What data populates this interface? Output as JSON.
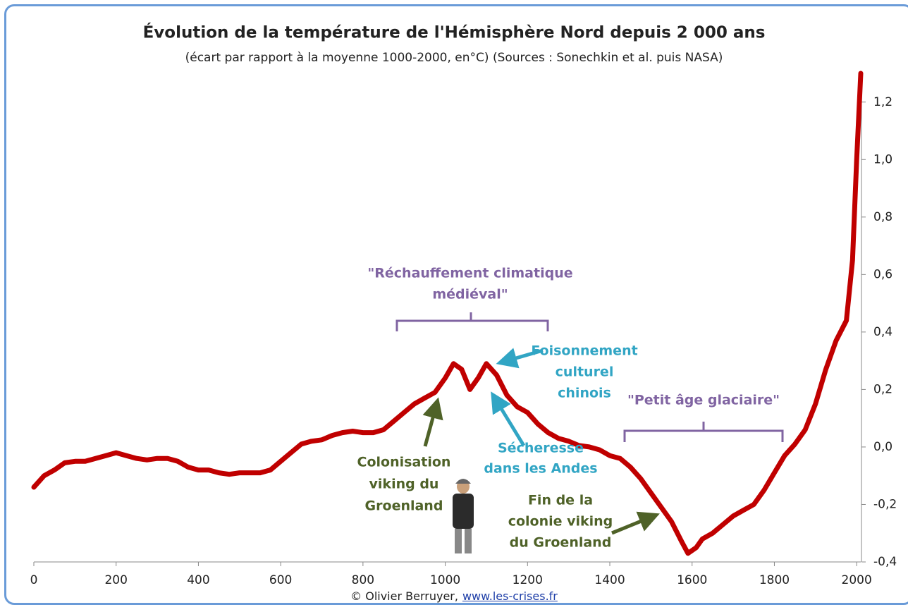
{
  "chart_data": {
    "type": "line",
    "title": "Évolution de la température de l'Hémisphère Nord depuis 2 000 ans",
    "subtitle": "(écart par rapport à la moyenne 1000-2000,  en°C) (Sources : Sonechkin et al. puis NASA)",
    "x": [
      0,
      25,
      50,
      75,
      100,
      125,
      150,
      175,
      200,
      225,
      250,
      275,
      300,
      325,
      350,
      375,
      400,
      425,
      450,
      475,
      500,
      525,
      550,
      575,
      600,
      625,
      650,
      675,
      700,
      725,
      750,
      775,
      800,
      825,
      850,
      875,
      900,
      925,
      950,
      975,
      1000,
      1020,
      1040,
      1060,
      1080,
      1100,
      1125,
      1150,
      1175,
      1200,
      1225,
      1250,
      1275,
      1300,
      1325,
      1350,
      1375,
      1400,
      1425,
      1450,
      1475,
      1500,
      1525,
      1550,
      1575,
      1590,
      1610,
      1625,
      1650,
      1675,
      1700,
      1725,
      1750,
      1775,
      1800,
      1825,
      1850,
      1875,
      1900,
      1925,
      1950,
      1975,
      1990,
      2000,
      2010
    ],
    "values": [
      -0.14,
      -0.1,
      -0.08,
      -0.055,
      -0.05,
      -0.05,
      -0.04,
      -0.03,
      -0.02,
      -0.03,
      -0.04,
      -0.045,
      -0.04,
      -0.04,
      -0.05,
      -0.07,
      -0.08,
      -0.08,
      -0.09,
      -0.095,
      -0.09,
      -0.09,
      -0.09,
      -0.08,
      -0.05,
      -0.02,
      0.01,
      0.02,
      0.025,
      0.04,
      0.05,
      0.055,
      0.05,
      0.05,
      0.06,
      0.09,
      0.12,
      0.15,
      0.17,
      0.19,
      0.24,
      0.29,
      0.27,
      0.2,
      0.24,
      0.29,
      0.25,
      0.18,
      0.14,
      0.12,
      0.08,
      0.05,
      0.03,
      0.02,
      0.005,
      0,
      -0.01,
      -0.03,
      -0.04,
      -0.07,
      -0.11,
      -0.16,
      -0.21,
      -0.26,
      -0.33,
      -0.37,
      -0.35,
      -0.32,
      -0.3,
      -0.27,
      -0.24,
      -0.22,
      -0.2,
      -0.15,
      -0.09,
      -0.03,
      0.01,
      0.06,
      0.15,
      0.27,
      0.37,
      0.44,
      0.65,
      1.0,
      1.3
    ],
    "color": "#c00000",
    "xlim": [
      0,
      2010
    ],
    "xticks": [
      0,
      200,
      400,
      600,
      800,
      1000,
      1200,
      1400,
      1600,
      1800,
      2000
    ],
    "ylim": [
      -0.4,
      1.3
    ],
    "yticks": [
      {
        "value": -0.4,
        "label": "-0,4"
      },
      {
        "value": -0.2,
        "label": "-0,2"
      },
      {
        "value": 0,
        "label": "0,0"
      },
      {
        "value": 0.2,
        "label": "0,2"
      },
      {
        "value": 0.4,
        "label": "0,4"
      },
      {
        "value": 0.6,
        "label": "0,6"
      },
      {
        "value": 0.8,
        "label": "0,8"
      },
      {
        "value": 1.0,
        "label": "1,0"
      },
      {
        "value": 1.2,
        "label": "1,2"
      }
    ],
    "annotations": [
      {
        "lines": [
          "\"Réchauffement climatique",
          "médiéval\""
        ],
        "color": "#8064a2"
      },
      {
        "lines": [
          "Foisonnement",
          "culturel",
          "chinois"
        ],
        "color": "#31a5c4"
      },
      {
        "lines": [
          "\"Petit âge glaciaire\""
        ],
        "color": "#8064a2"
      },
      {
        "lines": [
          "Sécheresse",
          "dans les Andes"
        ],
        "color": "#31a5c4"
      },
      {
        "lines": [
          "Colonisation",
          "viking du",
          "Groenland"
        ],
        "color": "#4f6228"
      },
      {
        "lines": [
          "Fin de la",
          "colonie viking",
          "du Groenland"
        ],
        "color": "#4f6228"
      }
    ]
  },
  "footer": {
    "text": "© Olivier Berruyer,",
    "link": "www.les-crises.fr"
  }
}
